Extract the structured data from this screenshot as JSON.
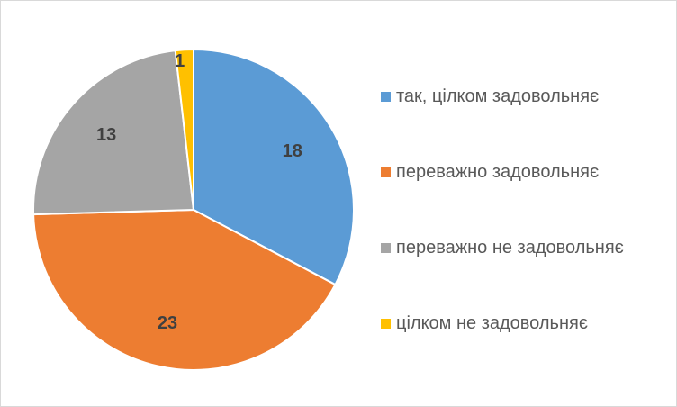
{
  "chart_data": {
    "type": "pie",
    "categories": [
      "так, цілком задовольняє",
      "переважно задовольняє",
      "переважно не задовольняє",
      "цілком не задовольняє"
    ],
    "values": [
      18,
      23,
      13,
      1
    ],
    "colors": [
      "#5b9bd5",
      "#ed7d31",
      "#a5a5a5",
      "#ffc000"
    ],
    "data_labels": [
      "18",
      "23",
      "13",
      "1"
    ],
    "start_angle_deg": 0,
    "direction": "clockwise",
    "legend_position": "right"
  }
}
